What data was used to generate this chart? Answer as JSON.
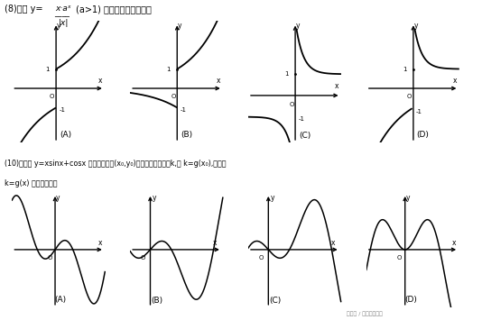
{
  "bg_color": "#ffffff",
  "text_color": "#000000",
  "header8_1": "(8)函数 y=",
  "header8_num": "x·aˣ",
  "header8_den": "|x|",
  "header8_2": "(a>1) 的图像的大致形状是",
  "header10_1": "(10)设函数 y=x·sinx+cosx 的图像上的点(x₀,y₀)处的切线的斜率为k,记 k=g(x₀),则函数",
  "header10_2": "k=g(x) 的图像大致为",
  "labels": [
    "(A)",
    "(B)",
    "(C)",
    "(D)"
  ],
  "watermark": "头条号 / 初高数学技巧"
}
